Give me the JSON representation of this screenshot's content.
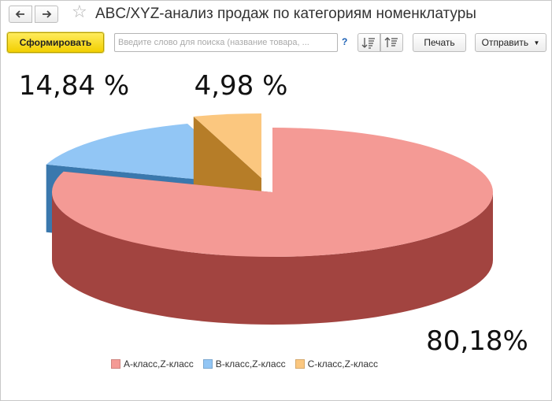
{
  "window": {
    "title": "ABC/XYZ-анализ продаж по категориям номенклатуры"
  },
  "toolbar": {
    "generate_label": "Сформировать",
    "search_placeholder": "Введите слово для поиска (название товара, ...",
    "help_label": "?",
    "print_label": "Печать",
    "send_label": "Отправить"
  },
  "icons": {
    "back": "arrow-left-icon",
    "forward": "arrow-right-icon",
    "favorite": "star-icon",
    "sort_asc": "sort-ascending-icon",
    "sort_desc": "sort-descending-icon",
    "dropdown": "chevron-down-icon"
  },
  "chart_data": {
    "type": "pie",
    "style": "3d-exploded",
    "slices": [
      {
        "name": "А-класс,Z-класс",
        "value": 80.18,
        "label": "80,18%",
        "color": "#f49a95",
        "side_color": "#a24440"
      },
      {
        "name": "В-класс,Z-класс",
        "value": 14.84,
        "label": "14,84 %",
        "color": "#92c6f5",
        "side_color": "#3a78ad"
      },
      {
        "name": "С-класс,Z-класс",
        "value": 4.98,
        "label": "4,98 %",
        "color": "#fbc77f",
        "side_color": "#b67d28"
      }
    ],
    "legend_position": "bottom"
  }
}
